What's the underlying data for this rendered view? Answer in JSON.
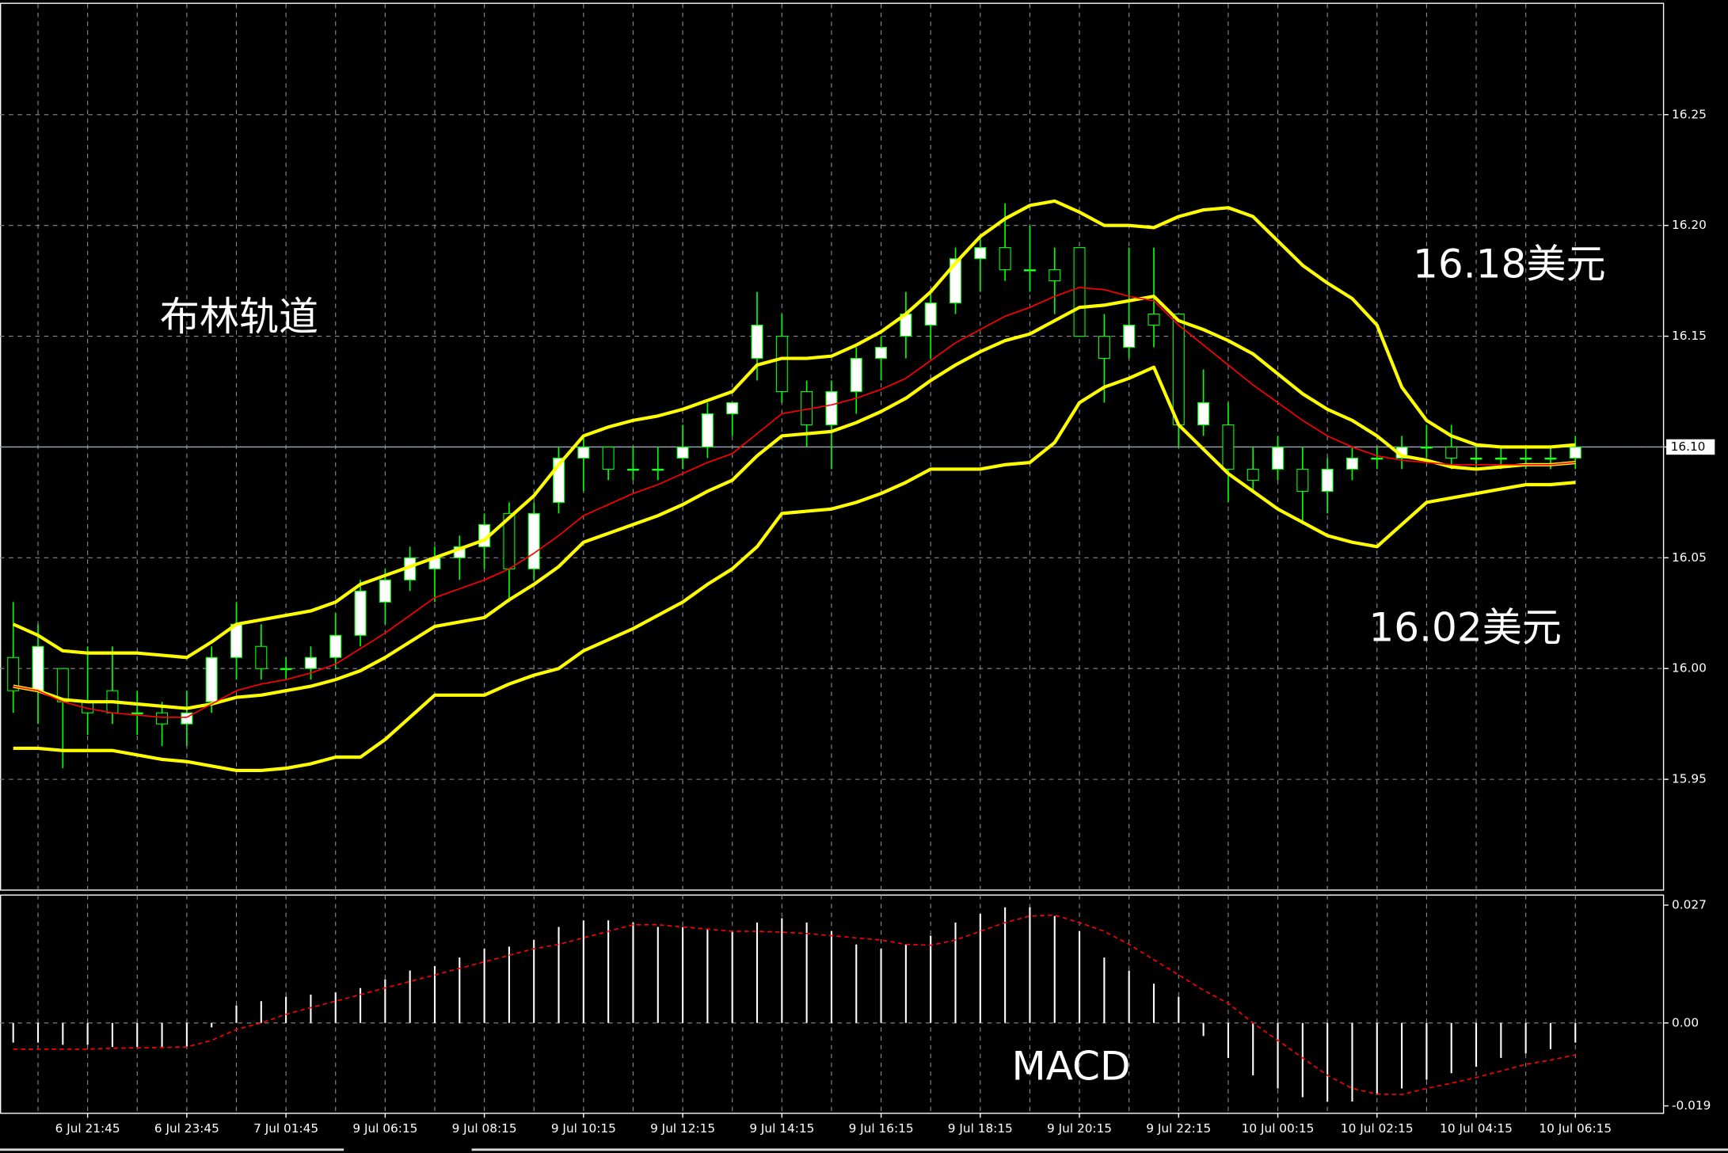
{
  "chart_data": [
    {
      "type": "candlestick",
      "categories": [
        null,
        null,
        null,
        "6 Jul 21:45",
        null,
        null,
        null,
        "6 Jul 23:45",
        null,
        null,
        null,
        "7 Jul 01:45",
        null,
        null,
        null,
        "9 Jul 06:15",
        null,
        null,
        null,
        "9 Jul 08:15",
        null,
        null,
        null,
        "9 Jul 10:15",
        null,
        null,
        null,
        "9 Jul 12:15",
        null,
        null,
        null,
        "9 Jul 14:15",
        null,
        null,
        null,
        "9 Jul 16:15",
        null,
        null,
        null,
        "9 Jul 18:15",
        null,
        null,
        null,
        "9 Jul 20:15",
        null,
        null,
        null,
        "9 Jul 22:15",
        null,
        null,
        null,
        "10 Jul 00:15",
        null,
        null,
        null,
        "10 Jul 02:15",
        null,
        null,
        null,
        "10 Jul 04:15",
        null,
        null,
        null,
        "10 Jul 06:15"
      ],
      "open": [
        16.005,
        15.99,
        16.0,
        15.985,
        15.99,
        15.98,
        15.98,
        15.975,
        15.985,
        16.005,
        16.01,
        16.0,
        16.0,
        16.005,
        16.015,
        16.03,
        16.04,
        16.045,
        16.05,
        16.055,
        16.07,
        16.045,
        16.075,
        16.095,
        16.1,
        16.09,
        16.09,
        16.095,
        16.1,
        16.115,
        16.14,
        16.15,
        16.125,
        16.11,
        16.125,
        16.14,
        16.15,
        16.155,
        16.165,
        16.185,
        16.19,
        16.18,
        16.18,
        16.19,
        16.15,
        16.145,
        16.16,
        16.16,
        16.11,
        16.11,
        16.09,
        16.09,
        16.09,
        16.08,
        16.09,
        16.095,
        16.095,
        16.1,
        16.1,
        16.095,
        16.095,
        16.095,
        16.095,
        16.095
      ],
      "high": [
        16.03,
        16.02,
        16.0,
        16.01,
        16.01,
        15.99,
        15.985,
        15.99,
        16.01,
        16.03,
        16.02,
        16.005,
        16.01,
        16.025,
        16.04,
        16.045,
        16.055,
        16.055,
        16.06,
        16.07,
        16.075,
        16.075,
        16.1,
        16.105,
        16.1,
        16.1,
        16.1,
        16.11,
        16.12,
        16.12,
        16.17,
        16.16,
        16.13,
        16.13,
        16.145,
        16.15,
        16.17,
        16.17,
        16.19,
        16.195,
        16.21,
        16.2,
        16.19,
        16.19,
        16.16,
        16.19,
        16.19,
        16.16,
        16.135,
        16.12,
        16.1,
        16.105,
        16.1,
        16.095,
        16.1,
        16.1,
        16.105,
        16.11,
        16.11,
        16.1,
        16.1,
        16.1,
        16.1,
        16.105
      ],
      "low": [
        15.98,
        15.975,
        15.955,
        15.97,
        15.975,
        15.97,
        15.965,
        15.965,
        15.98,
        15.995,
        15.995,
        15.995,
        15.995,
        16.0,
        16.01,
        16.02,
        16.035,
        16.03,
        16.04,
        16.045,
        16.03,
        16.04,
        16.07,
        16.08,
        16.085,
        16.085,
        16.085,
        16.09,
        16.095,
        16.105,
        16.13,
        16.12,
        16.1,
        16.09,
        16.115,
        16.13,
        16.14,
        16.14,
        16.16,
        16.17,
        16.175,
        16.17,
        16.16,
        16.15,
        16.12,
        16.14,
        16.145,
        16.1,
        16.105,
        16.075,
        16.08,
        16.085,
        16.065,
        16.07,
        16.085,
        16.09,
        16.09,
        16.095,
        16.09,
        16.09,
        16.09,
        16.09,
        16.09,
        16.09
      ],
      "close": [
        15.99,
        16.01,
        15.985,
        15.98,
        15.98,
        15.98,
        15.975,
        15.98,
        16.005,
        16.02,
        16.0,
        16.0,
        16.005,
        16.015,
        16.035,
        16.04,
        16.05,
        16.05,
        16.055,
        16.065,
        16.045,
        16.07,
        16.095,
        16.1,
        16.09,
        16.09,
        16.09,
        16.1,
        16.115,
        16.12,
        16.155,
        16.125,
        16.11,
        16.125,
        16.14,
        16.145,
        16.16,
        16.165,
        16.185,
        16.19,
        16.18,
        16.18,
        16.175,
        16.15,
        16.14,
        16.155,
        16.155,
        16.11,
        16.12,
        16.09,
        16.085,
        16.1,
        16.08,
        16.09,
        16.095,
        16.095,
        16.1,
        16.1,
        16.095,
        16.095,
        16.095,
        16.095,
        16.095,
        16.1
      ],
      "up_color": "#ffffff",
      "down_color": "#000000",
      "wick_color": "#00ff00",
      "series": [
        {
          "color": "#ffff00",
          "values": [
            16.02,
            16.015,
            16.008,
            16.007,
            16.007,
            16.007,
            16.006,
            16.005,
            16.012,
            16.02,
            16.022,
            16.024,
            16.026,
            16.03,
            16.038,
            16.042,
            16.046,
            16.05,
            16.054,
            16.058,
            16.068,
            16.078,
            16.092,
            16.105,
            16.109,
            16.112,
            16.114,
            16.117,
            16.121,
            16.125,
            16.137,
            16.14,
            16.14,
            16.141,
            16.146,
            16.152,
            16.16,
            16.17,
            16.183,
            16.195,
            16.203,
            16.209,
            16.211,
            16.206,
            16.2,
            16.2,
            16.199,
            16.204,
            16.207,
            16.208,
            16.204,
            16.193,
            16.182,
            16.174,
            16.167,
            16.155,
            16.127,
            16.112,
            16.105,
            16.101,
            16.1,
            16.1,
            16.1,
            16.101
          ]
        },
        {
          "color": "#ffff00",
          "values": [
            15.992,
            15.99,
            15.986,
            15.985,
            15.985,
            15.984,
            15.983,
            15.982,
            15.984,
            15.987,
            15.988,
            15.99,
            15.992,
            15.995,
            15.999,
            16.005,
            16.012,
            16.019,
            16.021,
            16.023,
            16.031,
            16.038,
            16.046,
            16.057,
            16.061,
            16.065,
            16.069,
            16.074,
            16.08,
            16.085,
            16.096,
            16.105,
            16.106,
            16.107,
            16.111,
            16.116,
            16.122,
            16.13,
            16.137,
            16.143,
            16.148,
            16.151,
            16.157,
            16.163,
            16.164,
            16.166,
            16.168,
            16.157,
            16.153,
            16.148,
            16.142,
            16.133,
            16.124,
            16.117,
            16.112,
            16.105,
            16.096,
            16.094,
            16.091,
            16.09,
            16.091,
            16.092,
            16.092,
            16.093
          ]
        },
        {
          "color": "#ffff00",
          "values": [
            15.964,
            15.964,
            15.963,
            15.963,
            15.963,
            15.961,
            15.959,
            15.958,
            15.956,
            15.954,
            15.954,
            15.955,
            15.957,
            15.96,
            15.96,
            15.968,
            15.978,
            15.988,
            15.988,
            15.988,
            15.993,
            15.997,
            16.0,
            16.008,
            16.013,
            16.018,
            16.024,
            16.03,
            16.038,
            16.045,
            16.055,
            16.07,
            16.071,
            16.072,
            16.075,
            16.079,
            16.084,
            16.09,
            16.09,
            16.09,
            16.092,
            16.093,
            16.102,
            16.12,
            16.127,
            16.131,
            16.136,
            16.11,
            16.099,
            16.088,
            16.08,
            16.072,
            16.066,
            16.06,
            16.057,
            16.055,
            16.065,
            16.075,
            16.077,
            16.079,
            16.081,
            16.083,
            16.083,
            16.084
          ]
        },
        {
          "color": "#ff0000",
          "values": [
            15.992,
            15.99,
            15.985,
            15.982,
            15.98,
            15.979,
            15.978,
            15.978,
            15.984,
            15.99,
            15.993,
            15.995,
            15.998,
            16.002,
            16.009,
            16.016,
            16.024,
            16.032,
            16.036,
            16.04,
            16.045,
            16.052,
            16.06,
            16.069,
            16.074,
            16.079,
            16.083,
            16.088,
            16.093,
            16.097,
            16.106,
            16.115,
            16.117,
            16.119,
            16.122,
            16.126,
            16.131,
            16.139,
            16.147,
            16.153,
            16.159,
            16.163,
            16.168,
            16.172,
            16.171,
            16.168,
            16.166,
            16.155,
            16.146,
            16.137,
            16.128,
            16.12,
            16.112,
            16.105,
            16.1,
            16.096,
            16.094,
            16.093,
            16.092,
            16.092,
            16.092,
            16.092,
            16.092,
            16.093
          ]
        }
      ],
      "ylim": [
        15.9,
        16.3
      ],
      "yticks": [
        15.95,
        {
          "value": 16,
          "label": "16.00"
        },
        16.05,
        {
          "value": 16.1,
          "label": "16.10"
        },
        16.15,
        {
          "value": 16.2,
          "label": "16.20"
        },
        16.25
      ],
      "last_price": {
        "value": 16.1,
        "label": "16.10"
      },
      "grid": true,
      "annotations": [
        "布林轨道",
        "16.18美元",
        "16.02美元"
      ]
    },
    {
      "type": "macd",
      "values": [
        -0.0045,
        -0.0045,
        -0.005,
        -0.005,
        -0.0055,
        -0.0055,
        -0.0055,
        -0.0055,
        -0.001,
        0.004,
        0.005,
        0.006,
        0.0065,
        0.007,
        0.008,
        0.01,
        0.012,
        0.013,
        0.015,
        0.017,
        0.0175,
        0.019,
        0.022,
        0.0235,
        0.0235,
        0.023,
        0.022,
        0.022,
        0.0215,
        0.021,
        0.023,
        0.024,
        0.023,
        0.021,
        0.018,
        0.017,
        0.018,
        0.02,
        0.023,
        0.025,
        0.0265,
        0.0265,
        0.0245,
        0.021,
        0.015,
        0.012,
        0.009,
        0.006,
        -0.003,
        -0.008,
        -0.012,
        -0.015,
        -0.017,
        -0.018,
        -0.018,
        -0.0165,
        -0.015,
        -0.013,
        -0.0115,
        -0.01,
        -0.008,
        -0.007,
        -0.006,
        -0.0045
      ],
      "color": "#ffffff",
      "series": [
        {
          "color": "#ff0000",
          "values": [
            -0.006,
            -0.006,
            -0.006,
            -0.006,
            -0.0058,
            -0.0057,
            -0.0056,
            -0.0055,
            -0.004,
            -0.0015,
            0.0,
            0.002,
            0.0035,
            0.005,
            0.0065,
            0.008,
            0.0095,
            0.011,
            0.0125,
            0.014,
            0.0155,
            0.017,
            0.018,
            0.0195,
            0.021,
            0.0225,
            0.0225,
            0.022,
            0.0215,
            0.021,
            0.021,
            0.0208,
            0.0205,
            0.02,
            0.0195,
            0.019,
            0.018,
            0.0178,
            0.019,
            0.021,
            0.023,
            0.0245,
            0.0247,
            0.023,
            0.021,
            0.018,
            0.0145,
            0.011,
            0.0075,
            0.0045,
            0.0,
            -0.004,
            -0.008,
            -0.012,
            -0.015,
            -0.0163,
            -0.0164,
            -0.015,
            -0.0138,
            -0.0125,
            -0.011,
            -0.0095,
            -0.0085,
            -0.0073
          ]
        }
      ],
      "ylim": [
        -0.0207,
        0.0293
      ],
      "yticks": [
        -0.019,
        {
          "value": 0,
          "label": "0.00"
        },
        0.027
      ],
      "annotations": [
        "MACD"
      ]
    }
  ]
}
